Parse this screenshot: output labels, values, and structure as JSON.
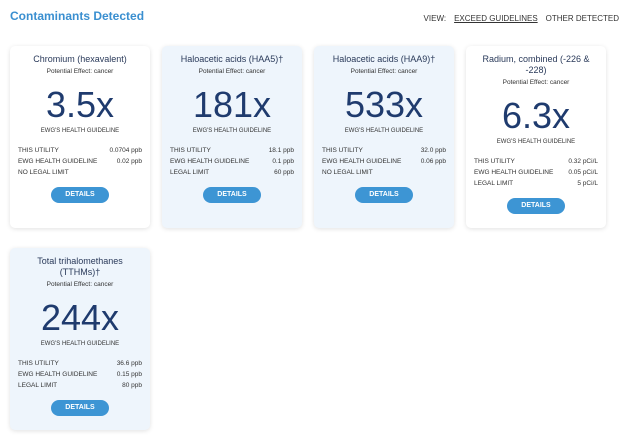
{
  "title": "Contaminants Detected",
  "view": {
    "label": "VIEW:",
    "options": [
      "EXCEED GUIDELINES",
      "OTHER DETECTED"
    ]
  },
  "cards": [
    {
      "name": "Chromium (hexavalent)",
      "effect": "Potential Effect: cancer",
      "multiple": "3.5x",
      "guide": "EWG'S HEALTH GUIDELINE",
      "rows": [
        [
          "THIS UTILITY",
          "0.0704 ppb"
        ],
        [
          "EWG HEALTH GUIDELINE",
          "0.02 ppb"
        ],
        [
          "NO LEGAL LIMIT",
          ""
        ]
      ],
      "button": "DETAILS"
    },
    {
      "name": "Haloacetic acids (HAA5)†",
      "effect": "Potential Effect: cancer",
      "multiple": "181x",
      "guide": "EWG'S HEALTH GUIDELINE",
      "rows": [
        [
          "THIS UTILITY",
          "18.1 ppb"
        ],
        [
          "EWG HEALTH GUIDELINE",
          "0.1 ppb"
        ],
        [
          "LEGAL LIMIT",
          "60 ppb"
        ]
      ],
      "button": "DETAILS"
    },
    {
      "name": "Haloacetic acids (HAA9)†",
      "effect": "Potential Effect: cancer",
      "multiple": "533x",
      "guide": "EWG'S HEALTH GUIDELINE",
      "rows": [
        [
          "THIS UTILITY",
          "32.0 ppb"
        ],
        [
          "EWG HEALTH GUIDELINE",
          "0.06 ppb"
        ],
        [
          "NO LEGAL LIMIT",
          ""
        ]
      ],
      "button": "DETAILS"
    },
    {
      "name": "Radium, combined (-226 & -228)",
      "effect": "Potential Effect: cancer",
      "multiple": "6.3x",
      "guide": "EWG'S HEALTH GUIDELINE",
      "rows": [
        [
          "THIS UTILITY",
          "0.32 pCi/L"
        ],
        [
          "EWG HEALTH GUIDELINE",
          "0.05 pCi/L"
        ],
        [
          "LEGAL LIMIT",
          "5 pCi/L"
        ]
      ],
      "button": "DETAILS"
    },
    {
      "name": "Total trihalomethanes (TTHMs)†",
      "effect": "Potential Effect: cancer",
      "multiple": "244x",
      "guide": "EWG'S HEALTH GUIDELINE",
      "rows": [
        [
          "THIS UTILITY",
          "36.6 ppb"
        ],
        [
          "EWG HEALTH GUIDELINE",
          "0.15 ppb"
        ],
        [
          "LEGAL LIMIT",
          "80 ppb"
        ]
      ],
      "button": "DETAILS"
    }
  ]
}
